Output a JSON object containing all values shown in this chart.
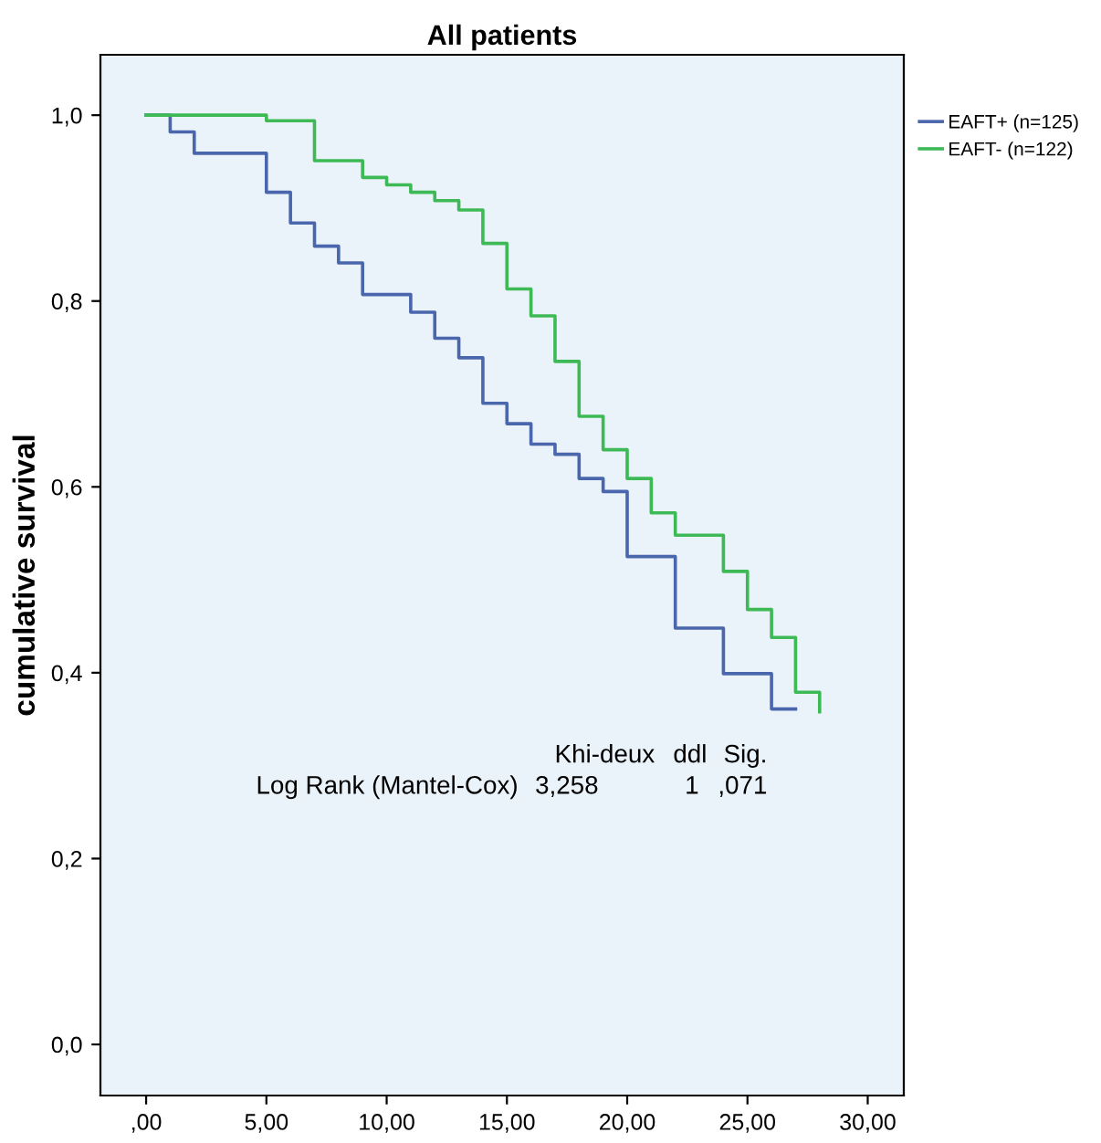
{
  "chart_data": {
    "type": "step",
    "title": "All patients",
    "ylabel": "cumulative survival",
    "series": [
      {
        "name": "EAFT+ (n=125)",
        "color": "#4a66ac",
        "x": [
          0,
          1,
          2,
          5,
          6,
          7,
          8,
          9,
          11,
          12,
          13,
          14,
          15,
          16,
          17,
          18,
          19,
          20,
          22,
          24,
          26,
          27
        ],
        "values": [
          1.0,
          0.982,
          0.959,
          0.917,
          0.884,
          0.859,
          0.841,
          0.807,
          0.788,
          0.76,
          0.739,
          0.69,
          0.668,
          0.646,
          0.635,
          0.609,
          0.595,
          0.525,
          0.448,
          0.399,
          0.361,
          0.361
        ]
      },
      {
        "name": "EAFT- (n=122)",
        "color": "#3dba55",
        "x": [
          0,
          5,
          7,
          9,
          10,
          11,
          12,
          13,
          14,
          15,
          16,
          17,
          18,
          19,
          20,
          21,
          22,
          24,
          25,
          26,
          27,
          28
        ],
        "values": [
          1.0,
          0.994,
          0.951,
          0.933,
          0.925,
          0.917,
          0.908,
          0.898,
          0.862,
          0.813,
          0.784,
          0.735,
          0.676,
          0.64,
          0.609,
          0.572,
          0.548,
          0.509,
          0.468,
          0.438,
          0.379,
          0.358
        ]
      }
    ],
    "xlim": [
      -1.9,
      31.5
    ],
    "ylim": [
      -0.055,
      1.065
    ],
    "xticks": [
      {
        "value": 0,
        "label": ",00"
      },
      {
        "value": 5,
        "label": "5,00"
      },
      {
        "value": 10,
        "label": "10,00"
      },
      {
        "value": 15,
        "label": "15,00"
      },
      {
        "value": 20,
        "label": "20,00"
      },
      {
        "value": 25,
        "label": "25,00"
      },
      {
        "value": 30,
        "label": "30,00"
      }
    ],
    "yticks": [
      {
        "value": 0,
        "label": "0,0"
      },
      {
        "value": 0.2,
        "label": "0,2"
      },
      {
        "value": 0.4,
        "label": "0,4"
      },
      {
        "value": 0.6,
        "label": "0,6"
      },
      {
        "value": 0.8,
        "label": "0,8"
      },
      {
        "value": 1.0,
        "label": "1,0"
      }
    ],
    "annotations": [
      "Khi-deux",
      "ddl",
      "Sig.",
      "Log Rank (Mantel-Cox)",
      "3,258",
      "1",
      ",071"
    ],
    "legend": "right",
    "grid": false,
    "marker": "none",
    "line_style": "solid"
  }
}
